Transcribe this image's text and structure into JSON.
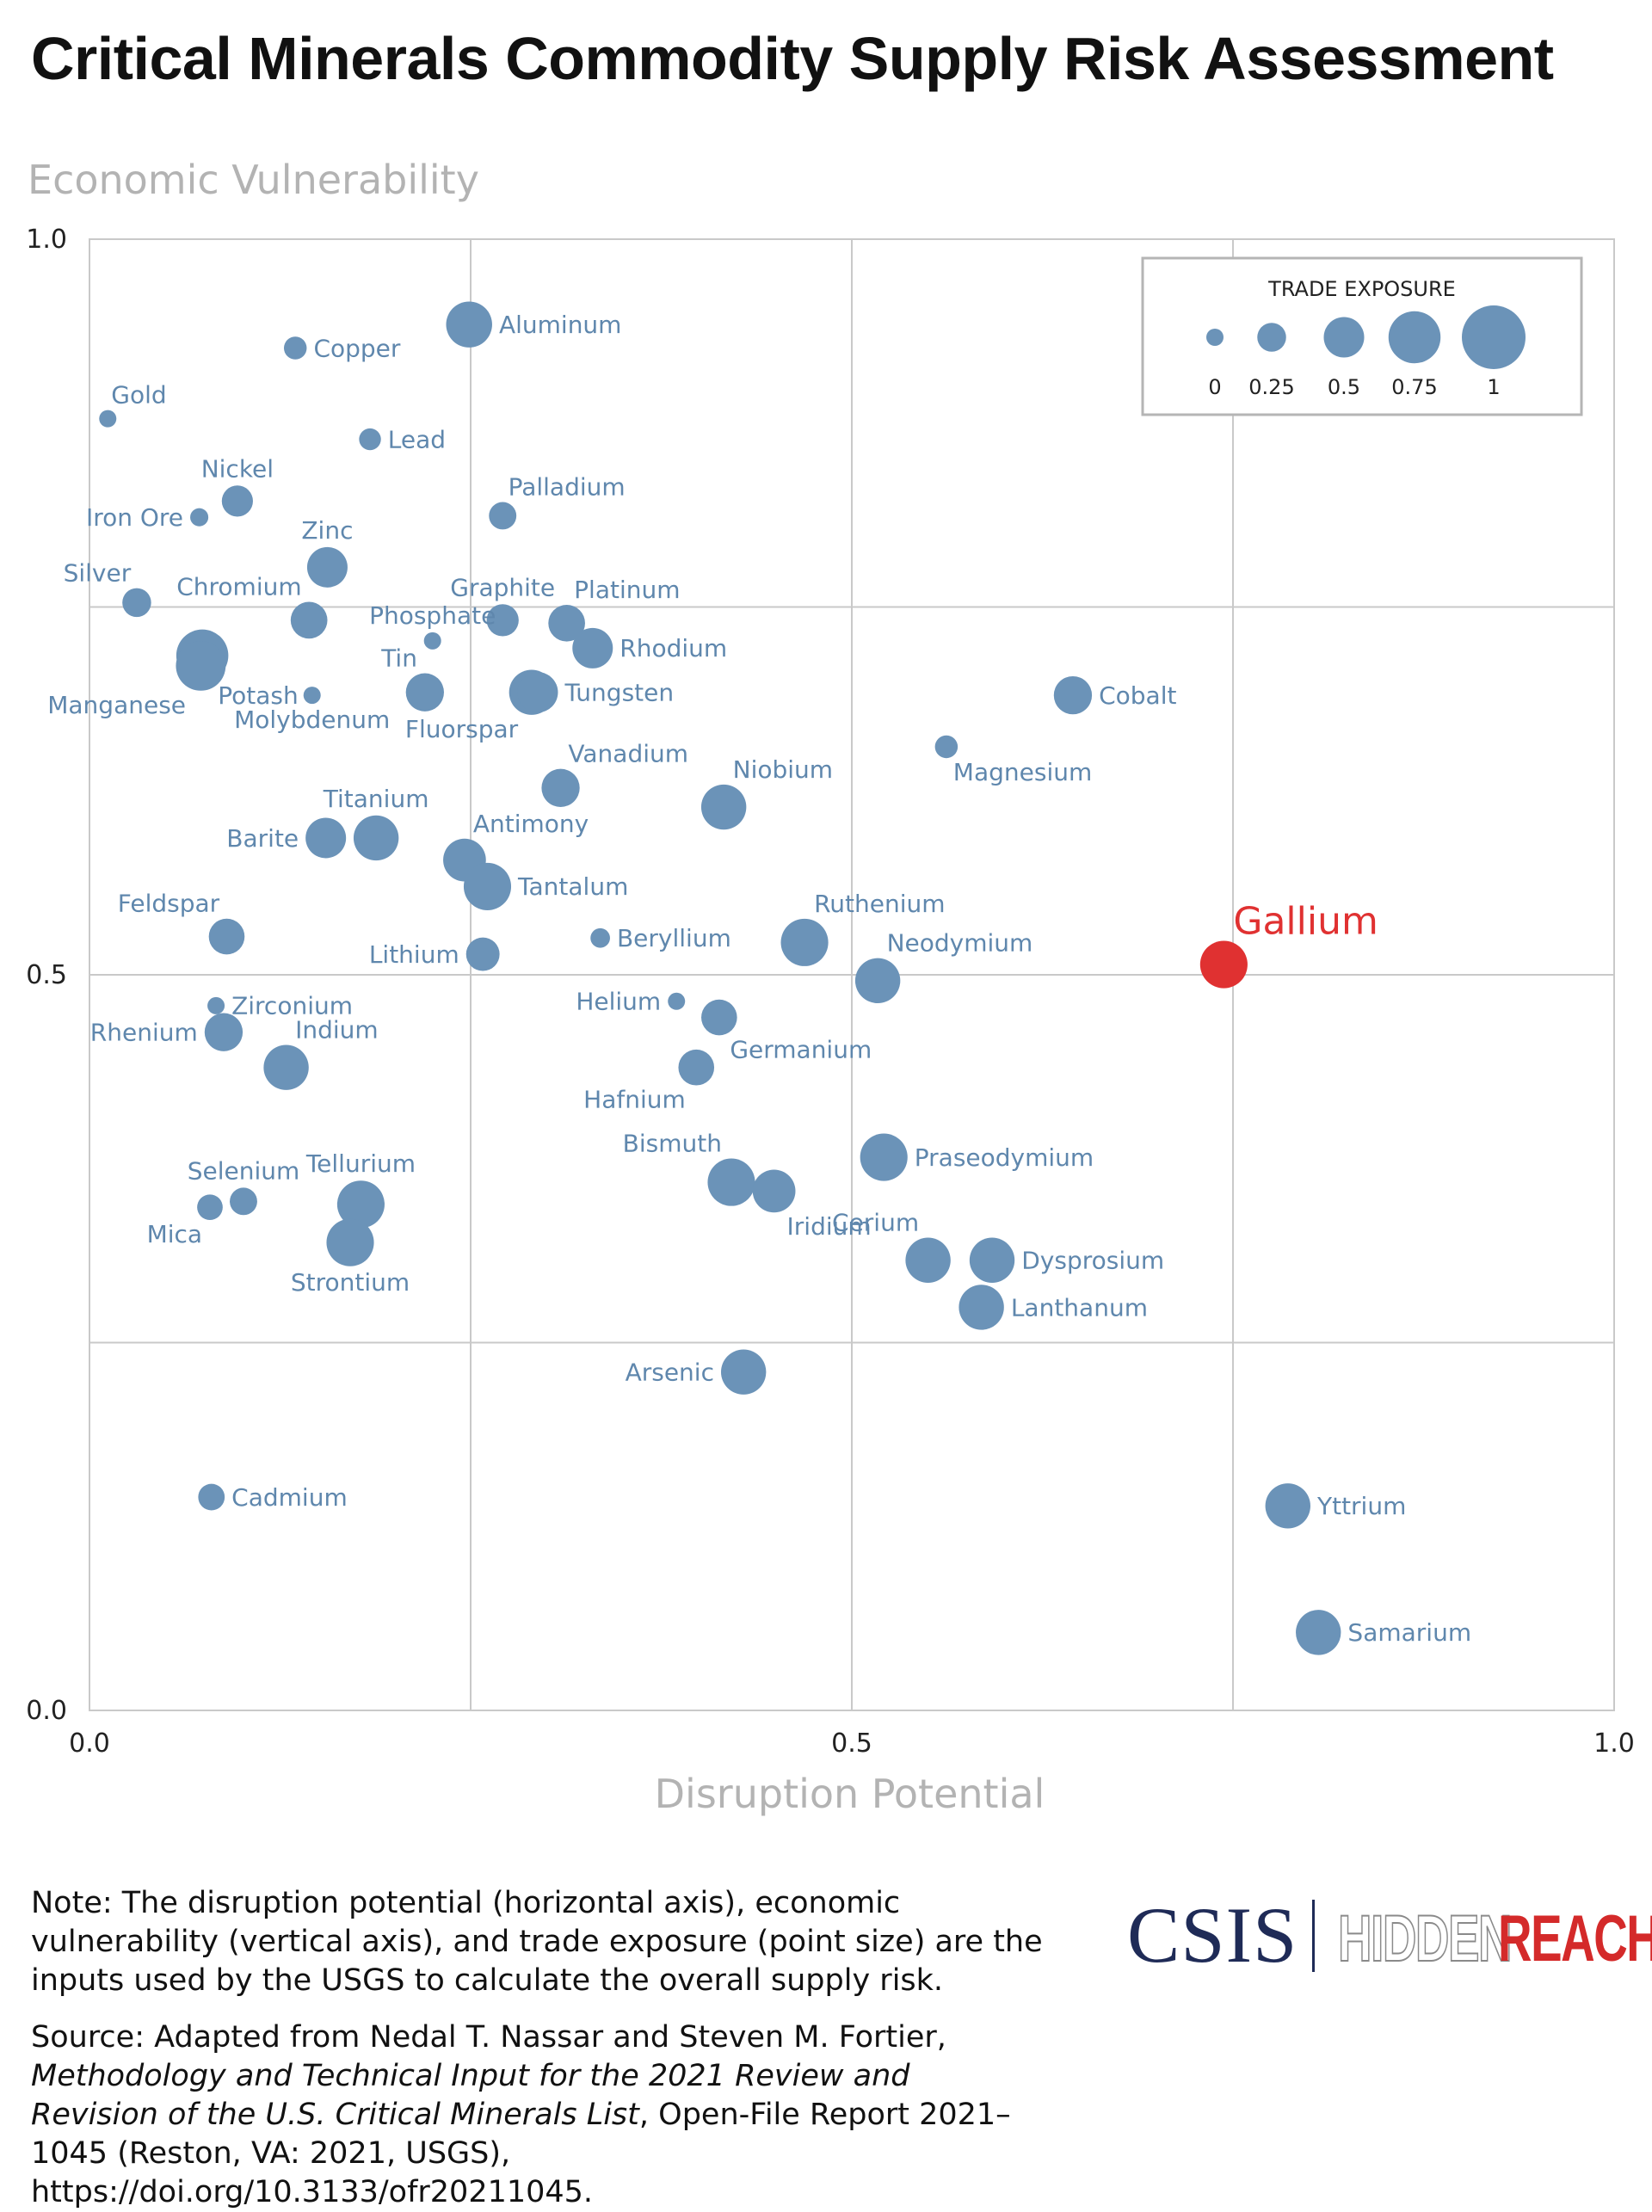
{
  "page": {
    "title": "Critical Minerals Commodity Supply Risk Assessment",
    "note": "Note: The disruption potential (horizontal axis), economic vulnerability (vertical axis), and trade exposure (point size) are the inputs used by the USGS to calculate the overall supply risk.",
    "source_prefix": "Source: Adapted from Nedal T. Nassar and Steven M. Fortier, ",
    "source_title": "Methodology and Technical Input for the 2021 Review and Revision of the U.S. Critical Minerals List",
    "source_suffix": ", Open-File Report 2021–1045 (Reston, VA: 2021, USGS), https://doi.org/10.3133/ofr20211045.",
    "logo_csis": "CSIS",
    "logo_hidden": "HIDDEN",
    "logo_reach": "REACH"
  },
  "chart_data": {
    "type": "scatter",
    "title": "Critical Minerals Commodity Supply Risk Assessment",
    "xlabel": "Disruption Potential",
    "ylabel": "Economic Vulnerability",
    "xlim": [
      0,
      1
    ],
    "ylim": [
      0,
      1
    ],
    "xticks": [
      "0.0",
      "0.5",
      "1.0"
    ],
    "yticks": [
      "0.0",
      "0.5",
      "1.0"
    ],
    "grid": true,
    "legend": {
      "title": "TRADE EXPOSURE",
      "position": "top-right",
      "values": [
        0,
        0.25,
        0.5,
        0.75,
        1
      ],
      "labels": [
        "0",
        "0.25",
        "0.5",
        "0.75",
        "1"
      ]
    },
    "colors": {
      "point": "#6b93b8",
      "highlight": "#e03131",
      "label": "#5f87ad"
    },
    "points": [
      {
        "name": "Aluminum",
        "x": 0.249,
        "y": 0.942,
        "size": 0.62,
        "label_pos": "right"
      },
      {
        "name": "Copper",
        "x": 0.135,
        "y": 0.926,
        "size": 0.12,
        "label_pos": "right"
      },
      {
        "name": "Gold",
        "x": 0.012,
        "y": 0.878,
        "size": 0.0,
        "label_pos": "above-right"
      },
      {
        "name": "Lead",
        "x": 0.184,
        "y": 0.864,
        "size": 0.1,
        "label_pos": "right"
      },
      {
        "name": "Nickel",
        "x": 0.097,
        "y": 0.822,
        "size": 0.3,
        "label_pos": "above"
      },
      {
        "name": "Iron Ore",
        "x": 0.072,
        "y": 0.811,
        "size": 0.02,
        "label_pos": "left"
      },
      {
        "name": "Palladium",
        "x": 0.271,
        "y": 0.812,
        "size": 0.22,
        "label_pos": "above-right"
      },
      {
        "name": "Zinc",
        "x": 0.156,
        "y": 0.777,
        "size": 0.5,
        "label_pos": "above"
      },
      {
        "name": "Silver",
        "x": 0.031,
        "y": 0.753,
        "size": 0.25,
        "label_pos": "above-left"
      },
      {
        "name": "Chromium",
        "x": 0.144,
        "y": 0.741,
        "size": 0.42,
        "label_pos": "above-left"
      },
      {
        "name": "Graphite",
        "x": 0.271,
        "y": 0.741,
        "size": 0.32,
        "label_pos": "above"
      },
      {
        "name": "Platinum",
        "x": 0.313,
        "y": 0.739,
        "size": 0.42,
        "label_pos": "above-right"
      },
      {
        "name": "Phosphate",
        "x": 0.225,
        "y": 0.727,
        "size": 0.0,
        "label_pos": "above"
      },
      {
        "name": "Rhodium",
        "x": 0.33,
        "y": 0.722,
        "size": 0.5,
        "label_pos": "right"
      },
      {
        "name": "Potash",
        "x": 0.074,
        "y": 0.717,
        "size": 0.75,
        "label_pos": "below-right"
      },
      {
        "name": "Manganese",
        "x": 0.073,
        "y": 0.71,
        "size": 0.7,
        "label_pos": "below-left"
      },
      {
        "name": "Tin",
        "x": 0.22,
        "y": 0.692,
        "size": 0.45,
        "label_pos": "above-left"
      },
      {
        "name": "Fluorspar",
        "x": 0.29,
        "y": 0.692,
        "size": 0.6,
        "label_pos": "below-left"
      },
      {
        "name": "Tungsten",
        "x": 0.294,
        "y": 0.692,
        "size": 0.5,
        "label_pos": "right"
      },
      {
        "name": "Molybdenum",
        "x": 0.146,
        "y": 0.69,
        "size": 0.0,
        "label_pos": "below"
      },
      {
        "name": "Cobalt",
        "x": 0.645,
        "y": 0.69,
        "size": 0.45,
        "label_pos": "right"
      },
      {
        "name": "Magnesium",
        "x": 0.562,
        "y": 0.655,
        "size": 0.12,
        "label_pos": "below-right"
      },
      {
        "name": "Vanadium",
        "x": 0.309,
        "y": 0.627,
        "size": 0.45,
        "label_pos": "above-right"
      },
      {
        "name": "Niobium",
        "x": 0.416,
        "y": 0.614,
        "size": 0.6,
        "label_pos": "above-right"
      },
      {
        "name": "Titanium",
        "x": 0.188,
        "y": 0.593,
        "size": 0.6,
        "label_pos": "above"
      },
      {
        "name": "Barite",
        "x": 0.155,
        "y": 0.593,
        "size": 0.5,
        "label_pos": "left"
      },
      {
        "name": "Antimony",
        "x": 0.246,
        "y": 0.578,
        "size": 0.55,
        "label_pos": "above-right"
      },
      {
        "name": "Tantalum",
        "x": 0.261,
        "y": 0.56,
        "size": 0.65,
        "label_pos": "right"
      },
      {
        "name": "Ruthenium",
        "x": 0.469,
        "y": 0.522,
        "size": 0.65,
        "label_pos": "above-right"
      },
      {
        "name": "Feldspar",
        "x": 0.09,
        "y": 0.526,
        "size": 0.4,
        "label_pos": "above-left"
      },
      {
        "name": "Beryllium",
        "x": 0.335,
        "y": 0.525,
        "size": 0.05,
        "label_pos": "right"
      },
      {
        "name": "Lithium",
        "x": 0.258,
        "y": 0.514,
        "size": 0.35,
        "label_pos": "left"
      },
      {
        "name": "Neodymium",
        "x": 0.517,
        "y": 0.496,
        "size": 0.6,
        "label_pos": "above-right"
      },
      {
        "name": "Gallium",
        "x": 0.744,
        "y": 0.507,
        "size": 0.65,
        "label_pos": "above-right",
        "highlight": true
      },
      {
        "name": "Zirconium",
        "x": 0.083,
        "y": 0.479,
        "size": 0.0,
        "label_pos": "right"
      },
      {
        "name": "Helium",
        "x": 0.385,
        "y": 0.482,
        "size": 0.0,
        "label_pos": "left"
      },
      {
        "name": "Germanium",
        "x": 0.413,
        "y": 0.471,
        "size": 0.4,
        "label_pos": "below-right"
      },
      {
        "name": "Rhenium",
        "x": 0.088,
        "y": 0.461,
        "size": 0.45,
        "label_pos": "left"
      },
      {
        "name": "Indium",
        "x": 0.129,
        "y": 0.437,
        "size": 0.6,
        "label_pos": "above-right"
      },
      {
        "name": "Hafnium",
        "x": 0.398,
        "y": 0.437,
        "size": 0.4,
        "label_pos": "below-left"
      },
      {
        "name": "Praseodymium",
        "x": 0.521,
        "y": 0.376,
        "size": 0.65,
        "label_pos": "right"
      },
      {
        "name": "Bismuth",
        "x": 0.421,
        "y": 0.359,
        "size": 0.65,
        "label_pos": "above-left"
      },
      {
        "name": "Iridium",
        "x": 0.449,
        "y": 0.353,
        "size": 0.55,
        "label_pos": "below-right"
      },
      {
        "name": "Selenium",
        "x": 0.101,
        "y": 0.346,
        "size": 0.22,
        "label_pos": "above"
      },
      {
        "name": "Tellurium",
        "x": 0.178,
        "y": 0.344,
        "size": 0.65,
        "label_pos": "above"
      },
      {
        "name": "Mica",
        "x": 0.079,
        "y": 0.342,
        "size": 0.18,
        "label_pos": "below-left"
      },
      {
        "name": "Strontium",
        "x": 0.171,
        "y": 0.318,
        "size": 0.65,
        "label_pos": "below"
      },
      {
        "name": "Cerium",
        "x": 0.55,
        "y": 0.306,
        "size": 0.6,
        "label_pos": "above-left"
      },
      {
        "name": "Dysprosium",
        "x": 0.592,
        "y": 0.306,
        "size": 0.6,
        "label_pos": "right"
      },
      {
        "name": "Lanthanum",
        "x": 0.585,
        "y": 0.274,
        "size": 0.6,
        "label_pos": "right"
      },
      {
        "name": "Arsenic",
        "x": 0.429,
        "y": 0.23,
        "size": 0.6,
        "label_pos": "left"
      },
      {
        "name": "Cadmium",
        "x": 0.08,
        "y": 0.145,
        "size": 0.2,
        "label_pos": "right"
      },
      {
        "name": "Yttrium",
        "x": 0.786,
        "y": 0.139,
        "size": 0.6,
        "label_pos": "right"
      },
      {
        "name": "Samarium",
        "x": 0.806,
        "y": 0.053,
        "size": 0.6,
        "label_pos": "right"
      }
    ]
  }
}
